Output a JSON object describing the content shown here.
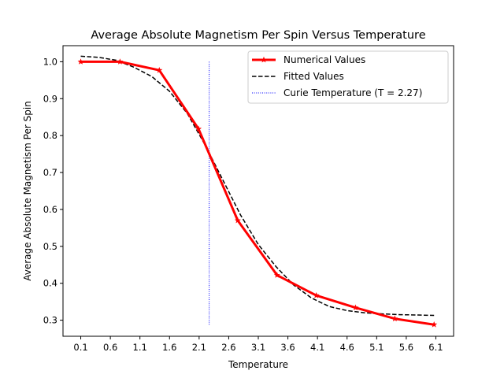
{
  "chart_data": {
    "type": "line",
    "title": "Average Absolute Magnetism Per Spin Versus Temperature",
    "xlabel": "Temperature",
    "ylabel": "Average Absolute Magnetism Per Spin",
    "xlim": [
      -0.2,
      6.4
    ],
    "ylim": [
      0.2565,
      1.0435
    ],
    "xticks": [
      0.1,
      0.6,
      1.1,
      1.6,
      2.1,
      2.6,
      3.1,
      3.6,
      4.1,
      4.6,
      5.1,
      5.6,
      6.1
    ],
    "yticks": [
      0.3,
      0.4,
      0.5,
      0.6,
      0.7,
      0.8,
      0.9,
      1.0
    ],
    "grid": false,
    "legend_position": "top-right",
    "colors": {
      "numerical": "#ff0000",
      "fitted": "#000000",
      "curie": "#0000ff"
    },
    "series": [
      {
        "name": "Numerical Values",
        "style": "solid-star",
        "x": [
          0.1,
          0.763,
          1.427,
          2.09,
          2.753,
          3.417,
          4.08,
          4.743,
          5.407,
          6.07
        ],
        "y": [
          1.0,
          1.0,
          0.977,
          0.818,
          0.57,
          0.422,
          0.367,
          0.334,
          0.304,
          0.288
        ]
      },
      {
        "name": "Fitted Values",
        "style": "dashed",
        "x": [
          0.1,
          0.4,
          0.7,
          1.0,
          1.3,
          1.6,
          1.9,
          2.2,
          2.5,
          2.8,
          3.1,
          3.4,
          3.7,
          4.0,
          4.3,
          4.6,
          4.9,
          5.2,
          5.5,
          5.8,
          6.07
        ],
        "y": [
          1.015,
          1.012,
          1.004,
          0.985,
          0.96,
          0.92,
          0.86,
          0.775,
          0.68,
          0.585,
          0.505,
          0.445,
          0.395,
          0.36,
          0.337,
          0.326,
          0.32,
          0.317,
          0.315,
          0.314,
          0.313
        ]
      },
      {
        "name": "Curie Temperature (T = 2.27)",
        "style": "dotted",
        "x": [
          2.27,
          2.27
        ],
        "y": [
          0.288,
          1.0
        ]
      }
    ]
  }
}
